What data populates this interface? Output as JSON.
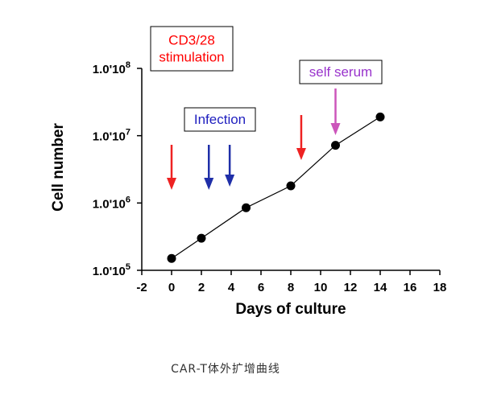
{
  "chart_data": {
    "type": "line",
    "xlabel": "Days of culture",
    "ylabel": "Cell number",
    "xlim": [
      -2,
      18
    ],
    "ylim": [
      100000,
      100000000
    ],
    "y_scale": "log",
    "x_ticks": [
      "-2",
      "0",
      "2",
      "4",
      "6",
      "8",
      "10",
      "12",
      "14",
      "16",
      "18"
    ],
    "y_ticks": [
      {
        "value": 100000,
        "base": "1.0'10",
        "exp": "5"
      },
      {
        "value": 1000000,
        "base": "1.0'10",
        "exp": "6"
      },
      {
        "value": 10000000,
        "base": "1.0'10",
        "exp": "7"
      },
      {
        "value": 100000000,
        "base": "1.0'10",
        "exp": "8"
      }
    ],
    "grid": false,
    "series": [
      {
        "x": [
          0,
          2,
          5,
          8,
          11,
          14
        ],
        "y": [
          150000,
          300000,
          850000,
          1800000,
          7200000,
          19000000
        ],
        "color": "#000000"
      }
    ],
    "annotations": [
      {
        "lines": [
          "CD3/28",
          "stimulation"
        ],
        "color": "#ff0000",
        "boxed": true
      },
      {
        "lines": [
          "Infection"
        ],
        "color": "#1f1fbf",
        "boxed": true
      },
      {
        "lines": [
          "self serum"
        ],
        "color": "#9933cc",
        "boxed": true
      }
    ],
    "arrows": [
      {
        "x": 0,
        "color": "#ee2222"
      },
      {
        "x": 2.5,
        "color": "#1f2fa8"
      },
      {
        "x": 3.9,
        "color": "#1f2fa8"
      },
      {
        "x": 8.7,
        "color": "#ee2222"
      },
      {
        "x": 11,
        "color": "#cc55bb"
      }
    ]
  },
  "caption": "CAR-T体外扩增曲线"
}
